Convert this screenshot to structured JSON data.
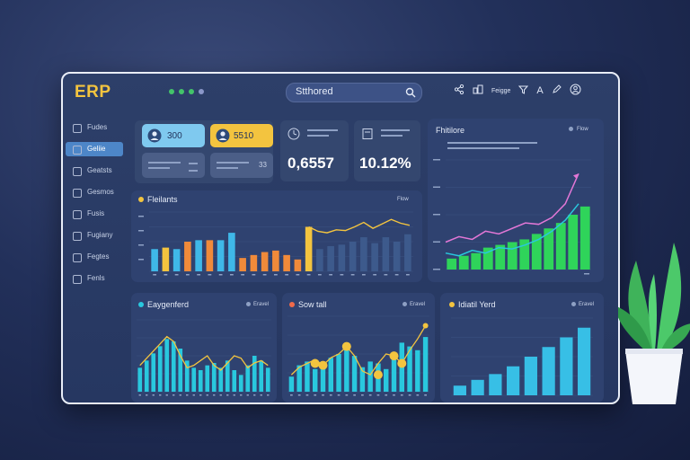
{
  "app": {
    "logo": "ERP",
    "window_dots": [
      "#43c36a",
      "#43c36a",
      "#43c36a",
      "#8a97c9"
    ]
  },
  "search": {
    "value": "Stthored"
  },
  "toolbar": {
    "label": "Feigge"
  },
  "sidebar": {
    "items": [
      {
        "label": "Fudes",
        "active": false
      },
      {
        "label": "Geliie",
        "active": true
      },
      {
        "label": "Geatsts",
        "active": false
      },
      {
        "label": "Gesmos",
        "active": false
      },
      {
        "label": "Fusis",
        "active": false
      },
      {
        "label": "Fugiany",
        "active": false
      },
      {
        "label": "Fegtes",
        "active": false
      },
      {
        "label": "Fenls",
        "active": false
      }
    ]
  },
  "kpi": {
    "tile1": "300",
    "tile2": "5510",
    "tile4": "33",
    "card1_value": "0,6557",
    "card2_value": "10.12%"
  },
  "panels": {
    "mid_title": "Fleilants",
    "mid_meta": "Flow",
    "right_title": "Fhitilore",
    "right_meta": "Flow",
    "bl_title": "Eaygenferd",
    "bl_meta": "Eravel",
    "bm_title": "Sow tall",
    "bm_meta": "Eravel",
    "br_title": "Idiatil Yerd",
    "br_meta": "Eravel"
  },
  "colors": {
    "accent": "#f3c43f",
    "green": "#2fd45a",
    "cyan": "#29c8de",
    "orange": "#f08a3a",
    "pink": "#e277d6"
  },
  "chart_data": [
    {
      "type": "bar",
      "name_hint": "middle mixed bar/line",
      "values": [
        30,
        32,
        30,
        40,
        42,
        42,
        42,
        52,
        18,
        22,
        26,
        28,
        22,
        16,
        60,
        30,
        34,
        36,
        40,
        46,
        38,
        46,
        40,
        50
      ],
      "bar_colors": [
        "#3fb8e8",
        "#f3c43f",
        "#3fb8e8",
        "#f08a3a",
        "#3fb8e8",
        "#f08a3a",
        "#3fb8e8",
        "#3fb8e8",
        "#f08a3a",
        "#f08a3a",
        "#f08a3a",
        "#f08a3a",
        "#f08a3a",
        "#f08a3a",
        "#f3c43f",
        "#3d5a8c",
        "#3d5a8c",
        "#3d5a8c",
        "#3d5a8c",
        "#3d5a8c",
        "#3d5a8c",
        "#3d5a8c",
        "#3d5a8c",
        "#3d5a8c"
      ],
      "line_y": [
        60,
        54,
        52,
        56,
        55,
        60,
        66,
        58,
        64,
        70,
        65,
        62
      ],
      "ylim": [
        0,
        80
      ]
    },
    {
      "type": "line",
      "name_hint": "right line + bar",
      "series": [
        {
          "values": [
            20,
            24,
            22,
            28,
            26,
            30,
            34,
            33,
            38,
            48,
            70
          ]
        },
        {
          "values": [
            12,
            10,
            14,
            12,
            16,
            15,
            18,
            22,
            28,
            36,
            48
          ]
        }
      ],
      "bars": [
        8,
        10,
        12,
        16,
        18,
        20,
        22,
        26,
        30,
        34,
        40,
        46
      ],
      "ylim": [
        0,
        80
      ]
    },
    {
      "type": "bar",
      "name_hint": "bottom left",
      "values": [
        20,
        26,
        32,
        38,
        44,
        42,
        36,
        26,
        20,
        18,
        22,
        24,
        20,
        26,
        18,
        14,
        22,
        30,
        26,
        20
      ],
      "line_y": [
        22,
        28,
        34,
        40,
        46,
        42,
        30,
        20,
        22,
        26,
        30,
        22,
        18,
        24,
        30,
        28,
        20,
        24,
        26,
        22
      ],
      "ylim": [
        0,
        60
      ]
    },
    {
      "type": "bar",
      "name_hint": "bottom middle",
      "values": [
        16,
        28,
        32,
        24,
        30,
        36,
        40,
        48,
        38,
        26,
        32,
        30,
        24,
        36,
        52,
        48,
        44,
        58
      ],
      "line_y": [
        18,
        26,
        30,
        34,
        28,
        36,
        40,
        48,
        38,
        22,
        18,
        30,
        40,
        38,
        30,
        44,
        56,
        70
      ],
      "dots": [
        [
          3,
          30
        ],
        [
          4,
          28
        ],
        [
          7,
          48
        ],
        [
          11,
          18
        ],
        [
          13,
          38
        ],
        [
          14,
          30
        ]
      ],
      "ylim": [
        0,
        80
      ]
    },
    {
      "type": "bar",
      "name_hint": "bottom right",
      "values": [
        10,
        16,
        22,
        30,
        40,
        50,
        60,
        70
      ],
      "ylim": [
        0,
        80
      ]
    }
  ]
}
